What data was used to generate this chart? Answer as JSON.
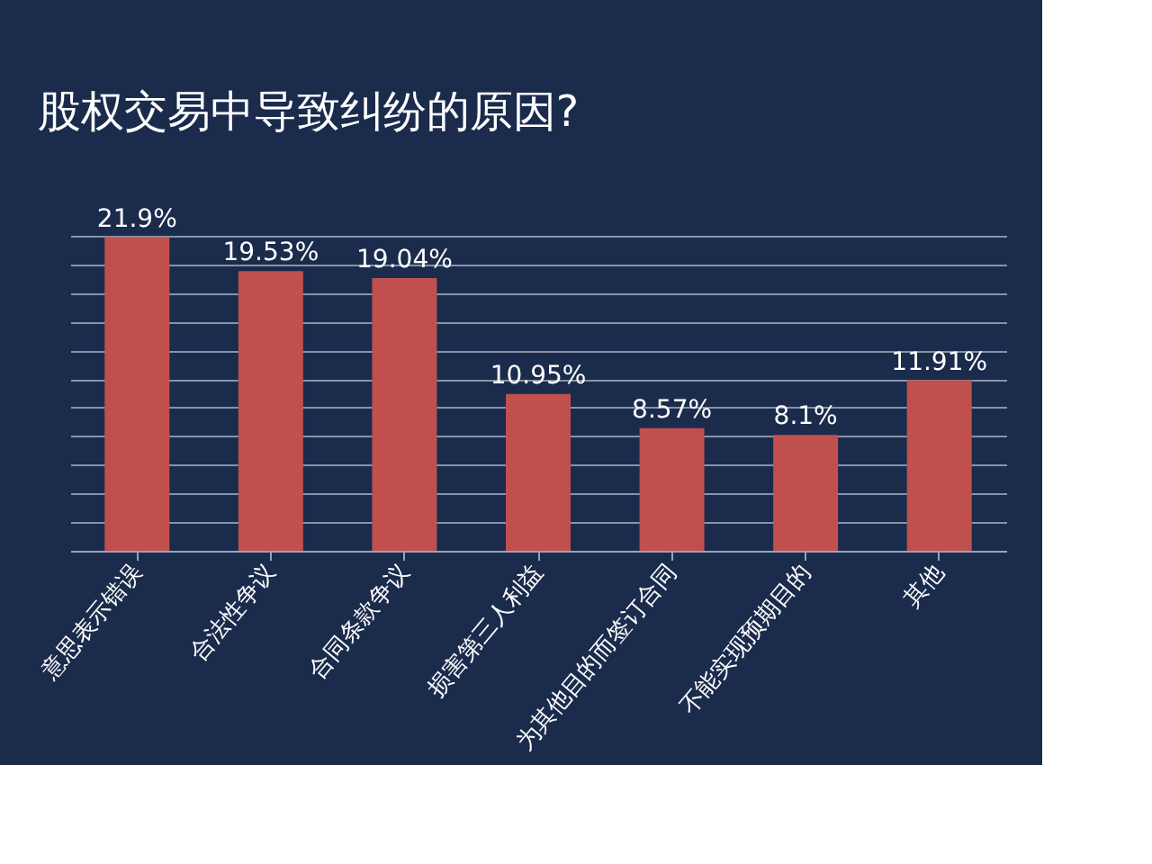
{
  "chart_data": {
    "type": "bar",
    "title": "股权交易中导致纠纷的原因?",
    "categories": [
      "意思表示错误",
      "合法性争议",
      "合同条款争议",
      "损害第三人利益",
      "为其他目的而签订合同",
      "不能实现预期目的",
      "其他"
    ],
    "values": [
      21.9,
      19.53,
      19.04,
      10.95,
      8.57,
      8.1,
      11.91
    ],
    "value_labels": [
      "21.9%",
      "19.53%",
      "19.04%",
      "10.95%",
      "8.57%",
      "8.1%",
      "11.91%"
    ],
    "color": "#c0504d",
    "grid": "y",
    "tick_labels": "x"
  }
}
